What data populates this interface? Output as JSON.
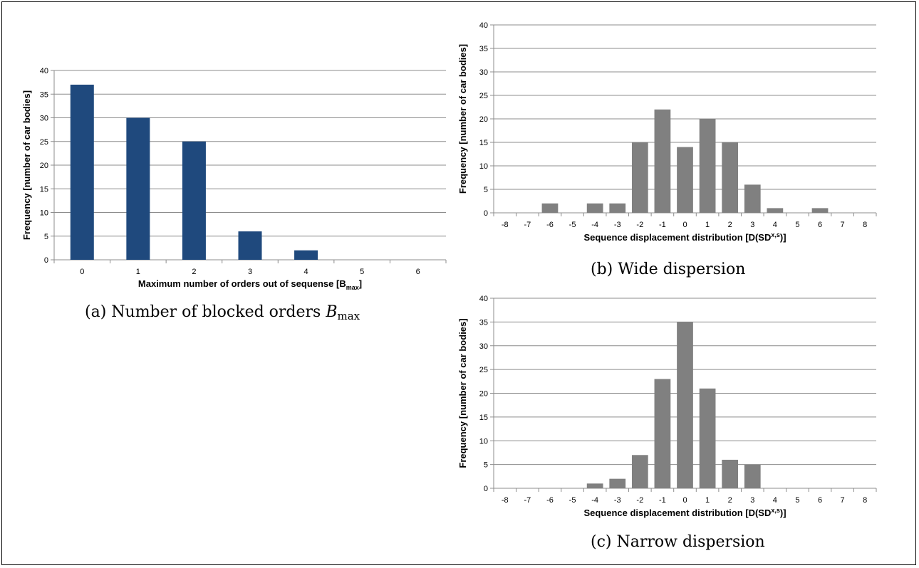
{
  "chart_data": [
    {
      "id": "a",
      "type": "bar",
      "categories": [
        "0",
        "1",
        "2",
        "3",
        "4",
        "5",
        "6"
      ],
      "values": [
        37,
        30,
        25,
        6,
        2,
        0,
        0
      ],
      "ylim": [
        0,
        40
      ],
      "yticks": [
        0,
        5,
        10,
        15,
        20,
        25,
        30,
        35,
        40
      ],
      "xlabel": "Maximum number of orders out of sequense [B",
      "xlabel_sub": "max",
      "xlabel_end": "]",
      "ylabel": "Frequency [number of car bodies]",
      "color": "#1f497d",
      "grid": true,
      "caption_prefix": "(a)  Number of blocked orders ",
      "caption_var": "B",
      "caption_sub": "max"
    },
    {
      "id": "b",
      "type": "bar",
      "categories": [
        "-8",
        "-7",
        "-6",
        "-5",
        "-4",
        "-3",
        "-2",
        "-1",
        "0",
        "1",
        "2",
        "3",
        "4",
        "5",
        "6",
        "7",
        "8"
      ],
      "values": [
        0,
        0,
        2,
        0,
        2,
        2,
        15,
        22,
        14,
        20,
        15,
        6,
        1,
        0,
        1,
        0,
        0
      ],
      "ylim": [
        0,
        40
      ],
      "yticks": [
        0,
        5,
        10,
        15,
        20,
        25,
        30,
        35,
        40
      ],
      "xlabel": "Sequence displacement distribution [D(SD",
      "xlabel_sup": "x,s",
      "xlabel_end": ")]",
      "ylabel": "Frequency [number of car bodies]",
      "color": "#808080",
      "grid": true,
      "caption": "(b)  Wide dispersion"
    },
    {
      "id": "c",
      "type": "bar",
      "categories": [
        "-8",
        "-7",
        "-6",
        "-5",
        "-4",
        "-3",
        "-2",
        "-1",
        "0",
        "1",
        "2",
        "3",
        "4",
        "5",
        "6",
        "7",
        "8"
      ],
      "values": [
        0,
        0,
        0,
        0,
        1,
        2,
        7,
        23,
        35,
        21,
        6,
        5,
        0,
        0,
        0,
        0,
        0
      ],
      "ylim": [
        0,
        40
      ],
      "yticks": [
        0,
        5,
        10,
        15,
        20,
        25,
        30,
        35,
        40
      ],
      "xlabel": "Sequence displacement distribution [D(SD",
      "xlabel_sup": "x,s",
      "xlabel_end": ")]",
      "ylabel": "Frequency [number of car bodies]",
      "color": "#808080",
      "grid": true,
      "caption": "(c)  Narrow dispersion"
    }
  ]
}
